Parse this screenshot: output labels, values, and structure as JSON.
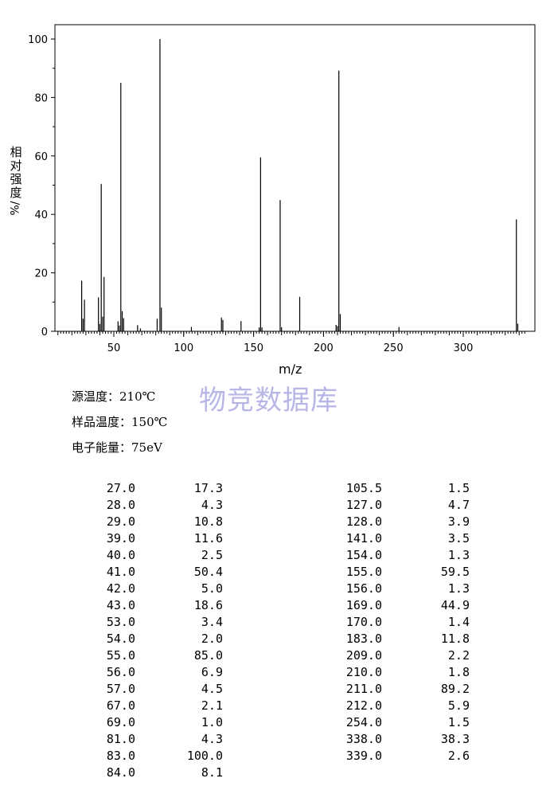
{
  "chart_data": {
    "type": "bar",
    "title": "",
    "xlabel": "m/z",
    "ylabel_chars": [
      "相",
      "对",
      "强",
      "度"
    ],
    "ylabel_unit": "%/",
    "xlim": [
      10,
      345
    ],
    "ylim": [
      0,
      100
    ],
    "xticks": [
      50,
      100,
      150,
      200,
      250,
      300
    ],
    "yticks": [
      0,
      20,
      40,
      60,
      80,
      100
    ],
    "x": [
      27.0,
      28.0,
      29.0,
      39.0,
      40.0,
      41.0,
      42.0,
      43.0,
      53.0,
      54.0,
      55.0,
      56.0,
      57.0,
      67.0,
      69.0,
      81.0,
      83.0,
      84.0,
      105.5,
      127.0,
      128.0,
      141.0,
      154.0,
      155.0,
      156.0,
      169.0,
      170.0,
      183.0,
      209.0,
      210.0,
      211.0,
      212.0,
      254.0,
      338.0,
      339.0
    ],
    "values": [
      17.3,
      4.3,
      10.8,
      11.6,
      2.5,
      50.4,
      5.0,
      18.6,
      3.4,
      2.0,
      85.0,
      6.9,
      4.5,
      2.1,
      1.0,
      4.3,
      100.0,
      8.1,
      1.5,
      4.7,
      3.9,
      3.5,
      1.3,
      59.5,
      1.3,
      44.9,
      1.4,
      11.8,
      2.2,
      1.8,
      89.2,
      5.9,
      1.5,
      38.3,
      2.6
    ]
  },
  "watermark": "物竞数据库",
  "conditions": {
    "source_temp": "源温度：210℃",
    "sample_temp": "样品温度：150℃",
    "electron_energy": "电子能量：75eV"
  },
  "table": {
    "left": [
      [
        "27.0",
        "17.3"
      ],
      [
        "28.0",
        "4.3"
      ],
      [
        "29.0",
        "10.8"
      ],
      [
        "39.0",
        "11.6"
      ],
      [
        "40.0",
        "2.5"
      ],
      [
        "41.0",
        "50.4"
      ],
      [
        "42.0",
        "5.0"
      ],
      [
        "43.0",
        "18.6"
      ],
      [
        "53.0",
        "3.4"
      ],
      [
        "54.0",
        "2.0"
      ],
      [
        "55.0",
        "85.0"
      ],
      [
        "56.0",
        "6.9"
      ],
      [
        "57.0",
        "4.5"
      ],
      [
        "67.0",
        "2.1"
      ],
      [
        "69.0",
        "1.0"
      ],
      [
        "81.0",
        "4.3"
      ],
      [
        "83.0",
        "100.0"
      ],
      [
        "84.0",
        "8.1"
      ]
    ],
    "right": [
      [
        "105.5",
        "1.5"
      ],
      [
        "127.0",
        "4.7"
      ],
      [
        "128.0",
        "3.9"
      ],
      [
        "141.0",
        "3.5"
      ],
      [
        "154.0",
        "1.3"
      ],
      [
        "155.0",
        "59.5"
      ],
      [
        "156.0",
        "1.3"
      ],
      [
        "169.0",
        "44.9"
      ],
      [
        "170.0",
        "1.4"
      ],
      [
        "183.0",
        "11.8"
      ],
      [
        "209.0",
        "2.2"
      ],
      [
        "210.0",
        "1.8"
      ],
      [
        "211.0",
        "89.2"
      ],
      [
        "212.0",
        "5.9"
      ],
      [
        "254.0",
        "1.5"
      ],
      [
        "338.0",
        "38.3"
      ],
      [
        "339.0",
        "2.6"
      ]
    ]
  }
}
